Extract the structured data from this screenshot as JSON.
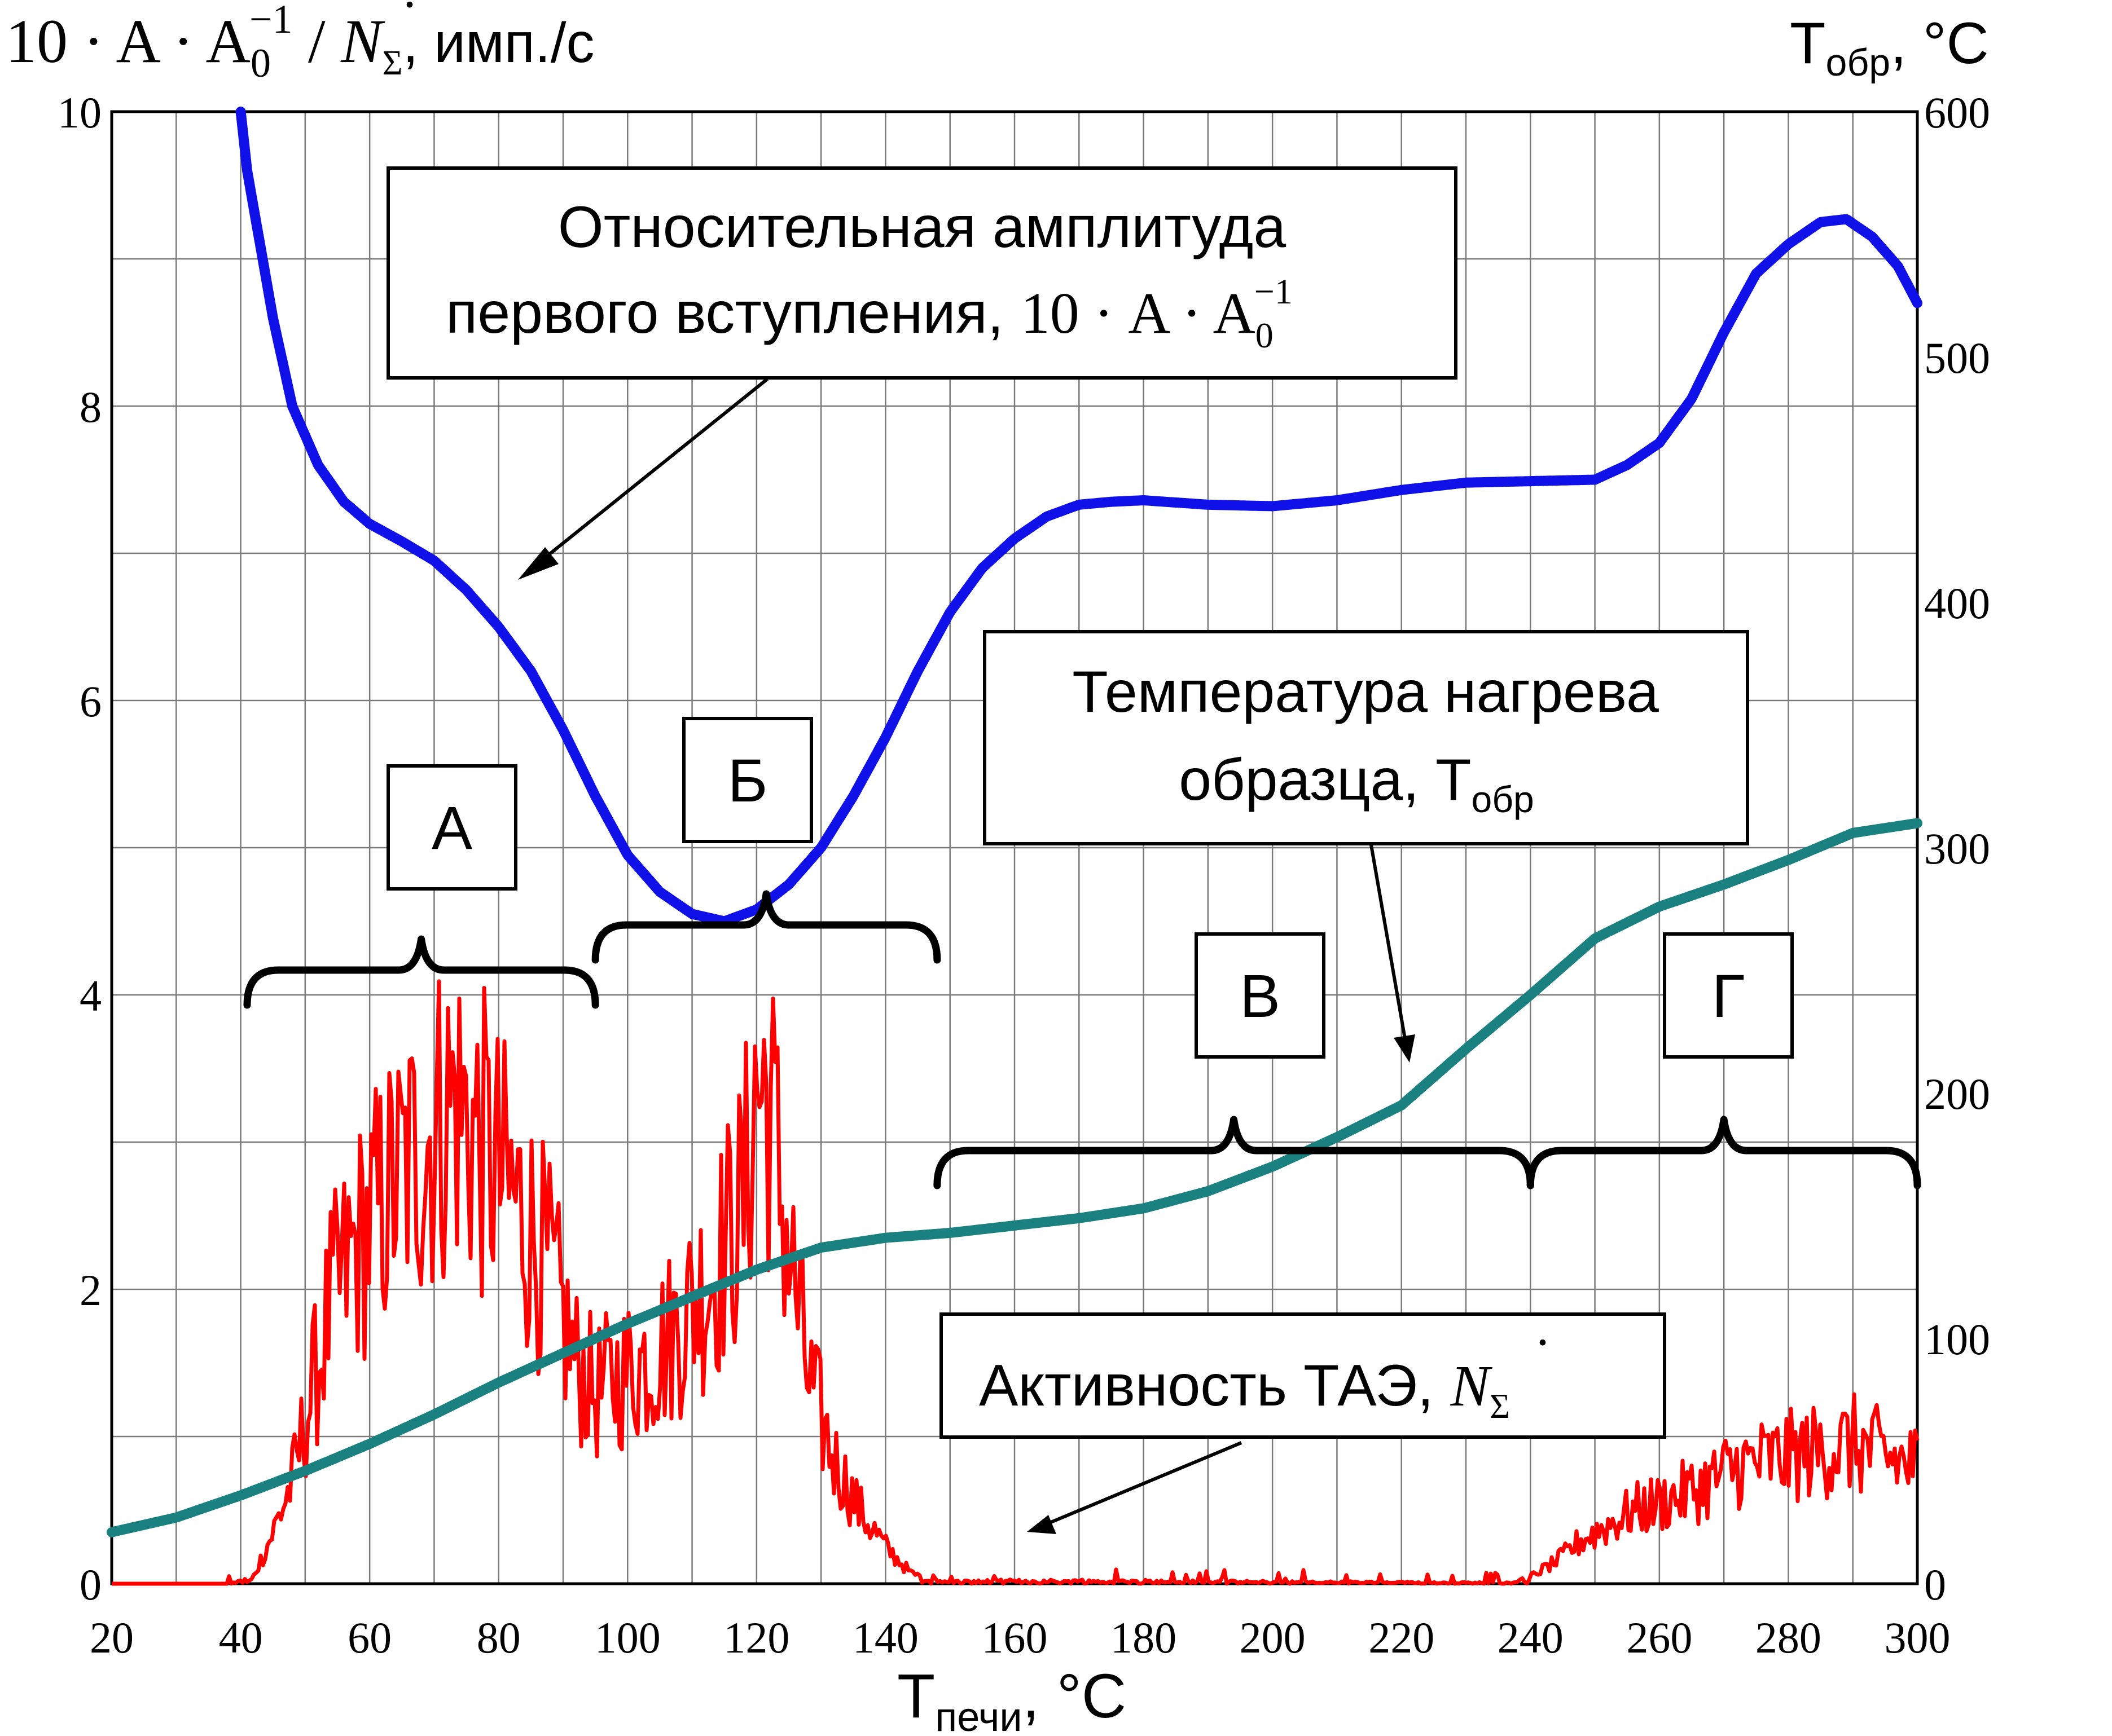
{
  "chart_data": {
    "type": "line",
    "xlabel": {
      "main": "T",
      "sub": "печи",
      "rest": ", °C"
    },
    "ylabel_left": {
      "formula": "10 · A · A",
      "sub": "0",
      "sup": "−1",
      "sep": " / ",
      "nsym": "N",
      "nsub": "Σ",
      "unit": ", имп./с"
    },
    "ylabel_right": {
      "main": "T",
      "sub": "обр",
      "rest": ", °C"
    },
    "xlim": [
      20,
      300
    ],
    "ylim_left": [
      0,
      10
    ],
    "ylim_right": [
      0,
      600
    ],
    "x_ticks": [
      "20",
      "40",
      "60",
      "80",
      "100",
      "120",
      "140",
      "160",
      "180",
      "200",
      "220",
      "240",
      "260",
      "280",
      "300"
    ],
    "y_left_ticks": [
      "0",
      "2",
      "4",
      "6",
      "8",
      "10"
    ],
    "y_right_ticks": [
      "0",
      "100",
      "200",
      "300",
      "400",
      "500",
      "600"
    ],
    "grid": true,
    "series": [
      {
        "key": "amplitude",
        "axis": "left",
        "color": "#1010e8",
        "points": [
          [
            40,
            10.0
          ],
          [
            41,
            9.6
          ],
          [
            43,
            9.1
          ],
          [
            45,
            8.6
          ],
          [
            48,
            8.0
          ],
          [
            52,
            7.6
          ],
          [
            56,
            7.35
          ],
          [
            60,
            7.2
          ],
          [
            65,
            7.08
          ],
          [
            70,
            6.95
          ],
          [
            75,
            6.75
          ],
          [
            80,
            6.5
          ],
          [
            85,
            6.2
          ],
          [
            90,
            5.8
          ],
          [
            95,
            5.35
          ],
          [
            100,
            4.95
          ],
          [
            105,
            4.7
          ],
          [
            110,
            4.55
          ],
          [
            115,
            4.5
          ],
          [
            120,
            4.58
          ],
          [
            125,
            4.75
          ],
          [
            130,
            5.0
          ],
          [
            135,
            5.35
          ],
          [
            140,
            5.75
          ],
          [
            145,
            6.2
          ],
          [
            150,
            6.6
          ],
          [
            155,
            6.9
          ],
          [
            160,
            7.1
          ],
          [
            165,
            7.25
          ],
          [
            170,
            7.33
          ],
          [
            175,
            7.35
          ],
          [
            180,
            7.36
          ],
          [
            190,
            7.33
          ],
          [
            200,
            7.32
          ],
          [
            210,
            7.36
          ],
          [
            220,
            7.43
          ],
          [
            230,
            7.48
          ],
          [
            240,
            7.49
          ],
          [
            250,
            7.5
          ],
          [
            255,
            7.6
          ],
          [
            260,
            7.75
          ],
          [
            265,
            8.05
          ],
          [
            270,
            8.5
          ],
          [
            275,
            8.9
          ],
          [
            280,
            9.1
          ],
          [
            285,
            9.25
          ],
          [
            289,
            9.27
          ],
          [
            293,
            9.15
          ],
          [
            297,
            8.95
          ],
          [
            300,
            8.7
          ]
        ]
      },
      {
        "key": "sample_temp",
        "axis": "right",
        "color": "#1a8080",
        "points": [
          [
            20,
            21
          ],
          [
            30,
            27
          ],
          [
            40,
            36
          ],
          [
            50,
            46
          ],
          [
            60,
            57
          ],
          [
            70,
            69
          ],
          [
            80,
            82
          ],
          [
            90,
            94
          ],
          [
            100,
            106
          ],
          [
            110,
            117
          ],
          [
            120,
            128
          ],
          [
            130,
            137
          ],
          [
            140,
            141
          ],
          [
            150,
            143
          ],
          [
            160,
            146
          ],
          [
            170,
            149
          ],
          [
            180,
            153
          ],
          [
            190,
            160
          ],
          [
            200,
            170
          ],
          [
            210,
            182
          ],
          [
            220,
            195
          ],
          [
            230,
            218
          ],
          [
            240,
            240
          ],
          [
            250,
            263
          ],
          [
            260,
            276
          ],
          [
            270,
            285
          ],
          [
            280,
            295
          ],
          [
            290,
            306
          ],
          [
            300,
            310
          ]
        ]
      },
      {
        "key": "activity",
        "axis": "left",
        "color": "#ff0000",
        "envelope": [
          [
            20,
            0.0
          ],
          [
            38,
            0.0
          ],
          [
            42,
            0.05
          ],
          [
            45,
            0.35
          ],
          [
            48,
            0.7
          ],
          [
            51,
            1.3
          ],
          [
            54,
            1.9
          ],
          [
            58,
            2.3
          ],
          [
            62,
            2.6
          ],
          [
            66,
            2.85
          ],
          [
            70,
            3.1
          ],
          [
            73,
            3.3
          ],
          [
            76,
            3.1
          ],
          [
            80,
            2.8
          ],
          [
            84,
            2.5
          ],
          [
            88,
            2.1
          ],
          [
            92,
            1.5
          ],
          [
            95,
            1.3
          ],
          [
            98,
            1.4
          ],
          [
            102,
            1.5
          ],
          [
            106,
            1.65
          ],
          [
            110,
            1.9
          ],
          [
            114,
            2.2
          ],
          [
            118,
            2.6
          ],
          [
            120,
            3.4
          ],
          [
            122,
            3.3
          ],
          [
            124,
            2.6
          ],
          [
            126,
            2.0
          ],
          [
            128,
            1.4
          ],
          [
            132,
            0.85
          ],
          [
            136,
            0.5
          ],
          [
            140,
            0.25
          ],
          [
            144,
            0.07
          ],
          [
            148,
            0.02
          ],
          [
            160,
            0.03
          ],
          [
            200,
            0.02
          ],
          [
            236,
            0.01
          ],
          [
            240,
            0.05
          ],
          [
            244,
            0.15
          ],
          [
            248,
            0.3
          ],
          [
            252,
            0.4
          ],
          [
            256,
            0.5
          ],
          [
            260,
            0.55
          ],
          [
            266,
            0.65
          ],
          [
            272,
            0.8
          ],
          [
            278,
            0.85
          ],
          [
            284,
            0.9
          ],
          [
            290,
            0.95
          ],
          [
            296,
            0.85
          ],
          [
            300,
            0.8
          ]
        ]
      }
    ],
    "annotations": {
      "amplitude": {
        "line1": "Относительная амплитуда",
        "line2": "первого вступления,",
        "formula": "10 · A · A",
        "sub": "0",
        "sup": "−1"
      },
      "temperature": {
        "line1": "Температура нагрева",
        "line2": "образца, T",
        "sub": "обр"
      },
      "activity": {
        "text": "Активность ТАЭ,",
        "nsym": "N",
        "nsub": "Σ"
      }
    },
    "regions": [
      {
        "label": "А",
        "from": 41,
        "to": 95
      },
      {
        "label": "Б",
        "from": 95,
        "to": 148
      },
      {
        "label": "В",
        "from": 148,
        "to": 240
      },
      {
        "label": "Г",
        "from": 240,
        "to": 300
      }
    ]
  }
}
